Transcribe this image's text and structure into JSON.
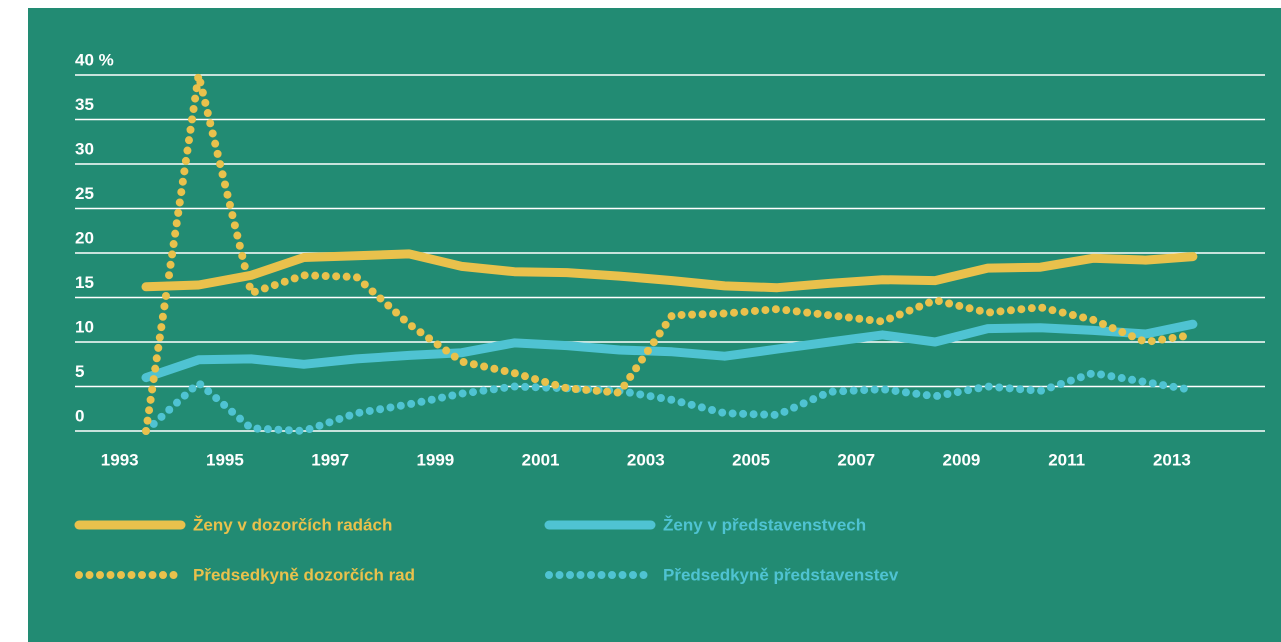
{
  "chart_data": {
    "type": "line",
    "x": [
      1993.5,
      1994.5,
      1995.5,
      1996.5,
      1997.5,
      1998.5,
      1999.5,
      2000.5,
      2001.5,
      2002.5,
      2003.5,
      2004.5,
      2005.5,
      2006.5,
      2007.5,
      2008.5,
      2009.5,
      2010.5,
      2011.5,
      2012.5,
      2013.4
    ],
    "series": [
      {
        "name": "Ženy v dozorčích radách",
        "color": "#e9c14c",
        "style": "solid",
        "values": [
          16.2,
          16.4,
          17.5,
          19.5,
          19.7,
          19.9,
          18.5,
          17.9,
          17.8,
          17.4,
          16.9,
          16.3,
          16.1,
          16.6,
          17.0,
          16.9,
          18.3,
          18.4,
          19.4,
          19.2,
          19.6
        ]
      },
      {
        "name": "Ženy v představenstvech",
        "color": "#4fc3d2",
        "style": "solid",
        "values": [
          6,
          8,
          8.1,
          7.5,
          8.1,
          8.5,
          8.8,
          9.9,
          9.6,
          9.1,
          8.9,
          8.4,
          9.2,
          10,
          10.8,
          10,
          11.5,
          11.6,
          11.3,
          10.9,
          12
        ]
      },
      {
        "name": "Předsedkyně dozorčích rad",
        "color": "#e9c14c",
        "style": "dotted",
        "values": [
          0,
          40,
          15.5,
          17.5,
          17.3,
          12,
          7.8,
          6.5,
          4.8,
          4.3,
          13,
          13.2,
          13.7,
          13,
          12.3,
          14.7,
          13.3,
          13.9,
          12.5,
          10,
          10.8
        ]
      },
      {
        "name": "Předsedkyně představenstev",
        "color": "#4fc3d2",
        "style": "dotted",
        "values": [
          0,
          5.4,
          0.3,
          0,
          2,
          3,
          4.2,
          5,
          4.8,
          4.5,
          3.5,
          2,
          1.8,
          4.4,
          4.7,
          3.9,
          5,
          4.5,
          6.5,
          5.5,
          4.6
        ]
      }
    ],
    "xlim": [
      1992.15,
      2014.77
    ],
    "xticks": [
      1993,
      1995,
      1997,
      1999,
      2001,
      2003,
      2005,
      2007,
      2009,
      2011,
      2013
    ],
    "ylim": [
      0,
      40
    ],
    "yticks": [
      0,
      5,
      10,
      15,
      20,
      25,
      30,
      35,
      {
        "value": 40,
        "label": "40 %"
      }
    ],
    "grid": true
  }
}
